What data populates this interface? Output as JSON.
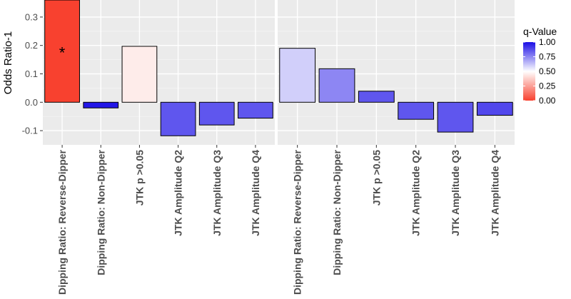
{
  "chart_data": {
    "type": "bar",
    "ylabel": "Odds Ratio-1",
    "ylim": [
      -0.15,
      0.36
    ],
    "yticks": [
      -0.1,
      0.0,
      0.1,
      0.2,
      0.3
    ],
    "ytick_labels": [
      "-0.1",
      "0.0",
      "0.1",
      "0.2",
      "0.3"
    ],
    "categories": [
      "Dipping Ratio: Reverse-Dipper",
      "Dipping Ratio: Non-Dipper",
      "JTK p >0.05",
      "JTK Amplitude Q2",
      "JTK Amplitude Q3",
      "JTK Amplitude Q4"
    ],
    "panels": [
      {
        "values": [
          0.36,
          -0.02,
          0.197,
          -0.118,
          -0.08,
          -0.056
        ],
        "q_values": [
          0.0,
          0.98,
          0.45,
          0.85,
          0.85,
          0.85
        ],
        "annotations": [
          {
            "category_index": 0,
            "text": "*",
            "y": 0.19
          }
        ]
      },
      {
        "values": [
          0.19,
          0.118,
          0.039,
          -0.06,
          -0.105,
          -0.046
        ],
        "q_values": [
          0.6,
          0.75,
          0.85,
          0.85,
          0.85,
          0.88
        ],
        "annotations": []
      }
    ],
    "legend": {
      "title": "q-Value",
      "ticks": [
        1.0,
        0.75,
        0.5,
        0.25,
        0.0
      ],
      "tick_labels": [
        "1.00",
        "0.75",
        "0.50",
        "0.25",
        "0.00"
      ],
      "placement": "right",
      "colors": {
        "low": "#f8412f",
        "mid": "#ffffff",
        "high": "#1a0de6"
      }
    },
    "grid": true,
    "panel_background": "#ebebeb"
  }
}
